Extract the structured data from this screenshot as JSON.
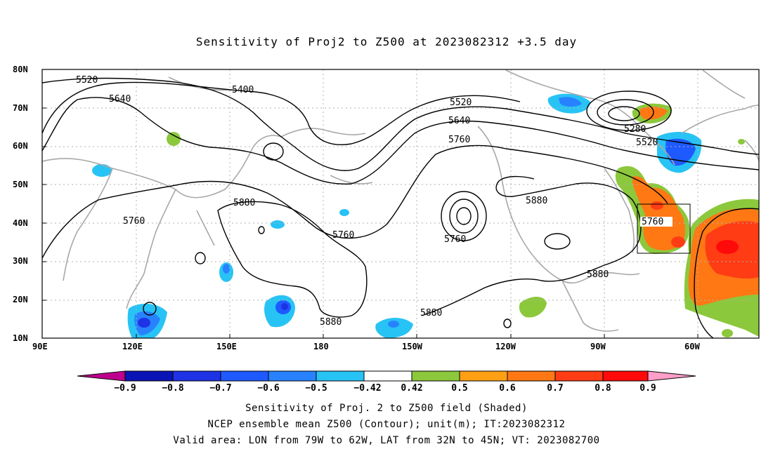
{
  "title": "Sensitivity of Proj2 to Z500 at 2023082312 +3.5 day",
  "map": {
    "lat_labels": [
      "80N",
      "70N",
      "60N",
      "50N",
      "40N",
      "30N",
      "20N",
      "10N"
    ],
    "lon_labels": [
      "90E",
      "120E",
      "150E",
      "180",
      "150W",
      "120W",
      "90W",
      "60W"
    ],
    "contour_labels": [
      "5520",
      "5400",
      "5640",
      "5520",
      "5640",
      "5760",
      "5280",
      "5520",
      "5880",
      "5760",
      "5760",
      "5760",
      "5880",
      "5760",
      "5880",
      "5880",
      "5880"
    ],
    "valid_box_label": "5760"
  },
  "colorbar": {
    "labels": [
      "−0.9",
      "−0.8",
      "−0.7",
      "−0.6",
      "−0.5",
      "−0.42",
      "0.42",
      "0.5",
      "0.6",
      "0.7",
      "0.8",
      "0.9"
    ],
    "colors": [
      "#bf008c",
      "#0a14b4",
      "#1e32e6",
      "#1e5aff",
      "#2882ff",
      "#28c3f5",
      "#ffffff",
      "#8cc83c",
      "#ffa014",
      "#ff7814",
      "#ff3c14",
      "#ff0a0a",
      "#ff9ec8"
    ]
  },
  "captions": {
    "line1": "Sensitivity of Proj. 2 to Z500 field (Shaded)",
    "line2": "NCEP ensemble mean Z500 (Contour); unit(m); IT:2023082312",
    "line3": "Valid area: LON from 79W to 62W, LAT from 32N to 45N; VT: 2023082700"
  }
}
